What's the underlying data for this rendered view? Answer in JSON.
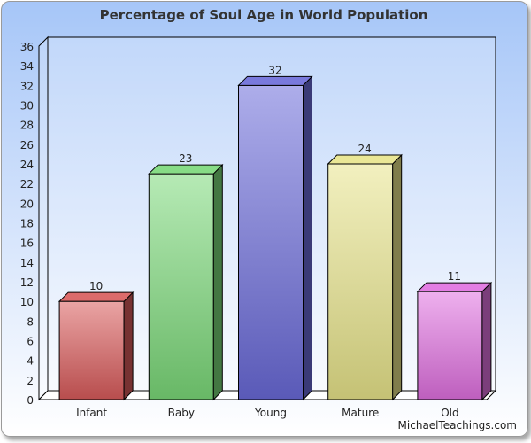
{
  "chart_data": {
    "type": "bar",
    "style": "3d",
    "title": "Percentage of Soul Age in World Population",
    "categories": [
      "Infant",
      "Baby",
      "Young",
      "Mature",
      "Old"
    ],
    "values": [
      10,
      23,
      32,
      24,
      11
    ],
    "data_labels": [
      "10",
      "23",
      "32",
      "24",
      "11"
    ],
    "colors": [
      "#d85a5a",
      "#7ad878",
      "#6a6ad8",
      "#e8e48a",
      "#e070e0"
    ],
    "yticks": [
      "0",
      "2",
      "4",
      "6",
      "8",
      "10",
      "12",
      "14",
      "16",
      "18",
      "20",
      "22",
      "24",
      "26",
      "28",
      "30",
      "32",
      "34",
      "36"
    ],
    "ylim": [
      0,
      36
    ],
    "xlabel": "",
    "ylabel": "",
    "legend": "none"
  },
  "credit": "MichaelTeachings.com"
}
